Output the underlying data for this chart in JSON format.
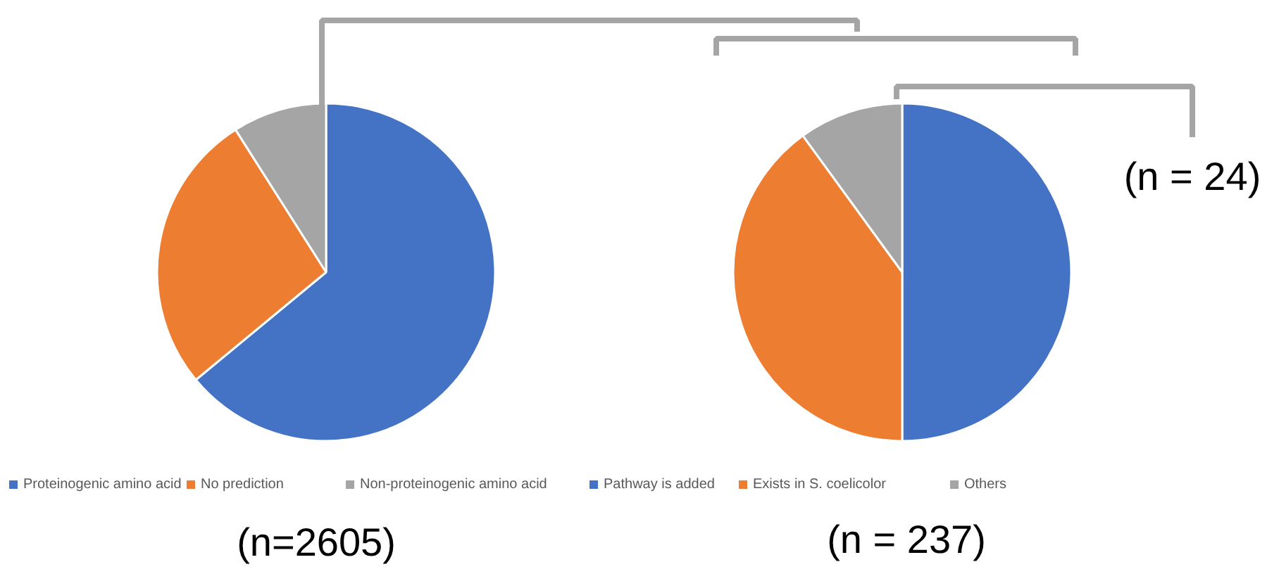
{
  "chart_data": [
    {
      "type": "pie",
      "categories": [
        "Proteinogenic amino acid",
        "No prediction",
        "Non-proteinogenic amino acid"
      ],
      "values": [
        64,
        27,
        9
      ],
      "colors": [
        "#4472c4",
        "#ed7d31",
        "#a5a5a5"
      ],
      "legend": "bottom",
      "annotations": [
        "(n=2605)"
      ]
    },
    {
      "type": "pie",
      "categories": [
        "Pathway is added",
        "Exists in S. coelicolor",
        "Others"
      ],
      "values": [
        50,
        40,
        10
      ],
      "colors": [
        "#4472c4",
        "#ed7d31",
        "#a5a5a5"
      ],
      "legend": "bottom",
      "annotations": [
        "(n = 237)",
        "(n = 24)"
      ]
    }
  ]
}
